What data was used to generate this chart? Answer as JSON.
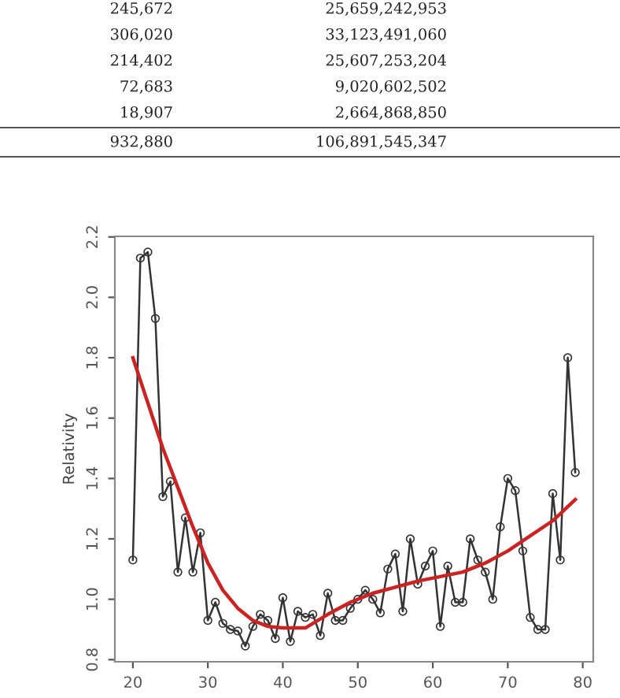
{
  "chart_data": {
    "type": "line",
    "ylabel": "Relativity",
    "annotations": [
      "245,672",
      "25,659,242,953",
      "306,020",
      "33,123,491,060",
      "214,402",
      "25,607,253,204",
      "72,683",
      "9,020,602,502",
      "18,907",
      "2,664,868,850",
      "932,880",
      "106,891,545,347"
    ],
    "xlim": [
      17.6,
      81.4
    ],
    "ylim": [
      0.793,
      2.202
    ],
    "xticks": [
      20,
      30,
      40,
      50,
      60,
      70,
      80
    ],
    "yticks": [
      0.8,
      {
        "value": 1.0,
        "label": "1.0"
      },
      1.2,
      1.4,
      1.6,
      1.8,
      {
        "value": 2.0,
        "label": "2.0"
      },
      2.2
    ],
    "grid": false,
    "legend": false,
    "series": [
      {
        "color": "#333333",
        "marker": "circle",
        "line_style": "solid",
        "x": [
          20,
          21,
          22,
          23,
          24,
          25,
          26,
          27,
          28,
          29,
          30,
          31,
          32,
          33,
          34,
          35,
          36,
          37,
          38,
          39,
          40,
          41,
          42,
          43,
          44,
          45,
          46,
          47,
          48,
          49,
          50,
          51,
          52,
          53,
          54,
          55,
          56,
          57,
          58,
          59,
          60,
          61,
          62,
          63,
          64,
          65,
          66,
          67,
          68,
          69,
          70,
          71,
          72,
          73,
          74,
          75,
          76,
          77,
          78,
          79
        ],
        "values": [
          1.13,
          2.13,
          2.15,
          1.93,
          1.34,
          1.39,
          1.09,
          1.27,
          1.09,
          1.22,
          0.93,
          0.99,
          0.92,
          0.9,
          0.895,
          0.845,
          0.91,
          0.95,
          0.93,
          0.87,
          1.005,
          0.86,
          0.96,
          0.94,
          0.95,
          0.88,
          1.02,
          0.93,
          0.93,
          0.97,
          1.0,
          1.03,
          1.0,
          0.955,
          1.1,
          1.15,
          0.96,
          1.2,
          1.05,
          1.11,
          1.16,
          0.91,
          1.11,
          0.99,
          0.99,
          1.2,
          1.13,
          1.09,
          1.0,
          1.24,
          1.4,
          1.36,
          1.16,
          0.94,
          0.9,
          0.9,
          1.35,
          1.13,
          1.8,
          1.42
        ]
      },
      {
        "color": "#cc2222",
        "marker": "none",
        "line_style": "solid",
        "x": [
          20,
          22,
          24,
          26,
          28,
          30,
          32,
          34,
          36,
          38,
          40,
          43,
          46,
          49,
          52,
          55,
          58,
          61,
          64,
          67,
          70,
          73,
          76,
          79
        ],
        "values": [
          1.8,
          1.65,
          1.5,
          1.37,
          1.24,
          1.12,
          1.03,
          0.97,
          0.93,
          0.91,
          0.905,
          0.905,
          0.95,
          0.99,
          1.02,
          1.04,
          1.06,
          1.075,
          1.09,
          1.12,
          1.16,
          1.21,
          1.26,
          1.33
        ]
      }
    ]
  }
}
